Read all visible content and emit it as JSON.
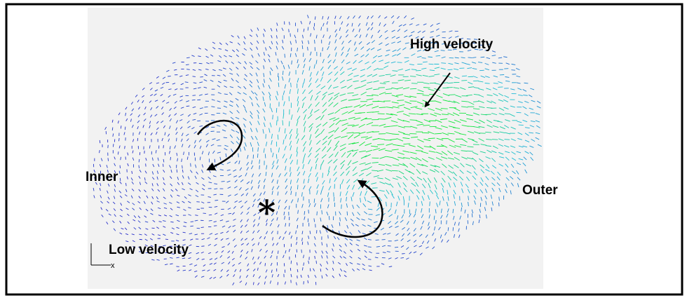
{
  "labels": {
    "high_velocity": "High velocity",
    "inner": "Inner",
    "outer": "Outer",
    "low_velocity": "Low velocity",
    "marker": "*",
    "axis_x": "x"
  }
}
